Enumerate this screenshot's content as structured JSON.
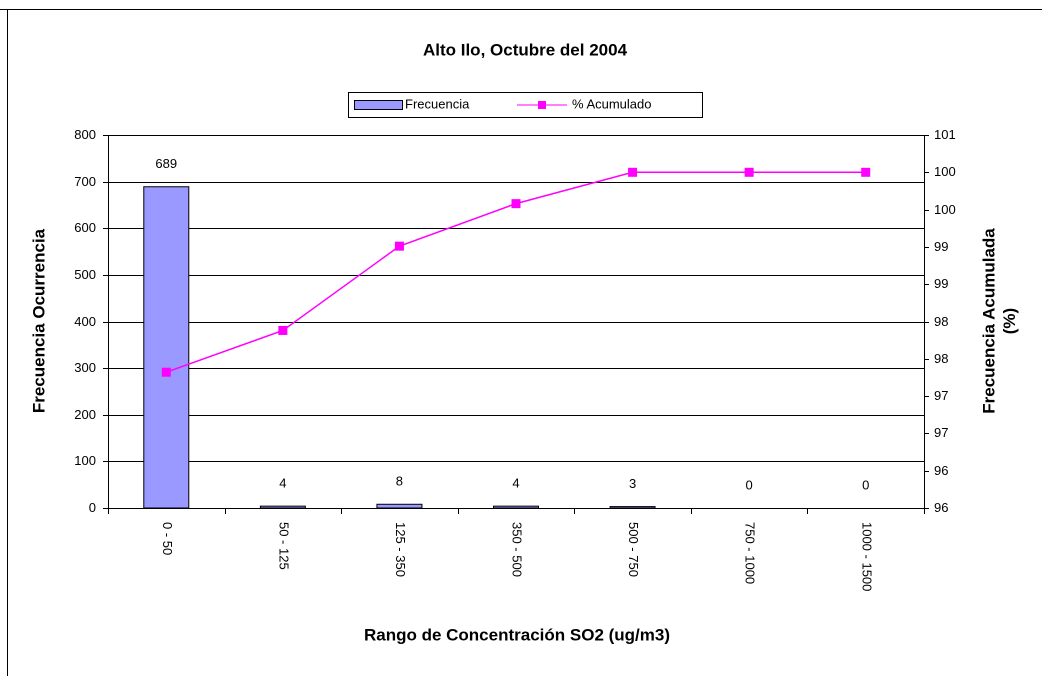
{
  "chart_data": {
    "type": "bar_line",
    "title": "Alto Ilo, Octubre del 2004",
    "x_label": "Rango de Concentración SO2 (ug/m3)",
    "y_label": "Frecuencia Ocurrencia",
    "y2_label": "Frecuencia Acumulada (%)",
    "categories": [
      "0 - 50",
      "50 - 125",
      "125 - 350",
      "350 - 500",
      "500 - 750",
      "750 - 1000",
      "1000 - 1500"
    ],
    "series": [
      {
        "name": "Frecuencia",
        "type": "bar",
        "color": "#9999ff",
        "values": [
          689,
          4,
          8,
          4,
          3,
          0,
          0
        ]
      },
      {
        "name": "% Acumulado",
        "type": "line",
        "axis": "y2",
        "color": "#ff00ff",
        "values": [
          97.32,
          97.88,
          99.01,
          99.58,
          100,
          100,
          100
        ]
      }
    ],
    "ylim": [
      0,
      800
    ],
    "yticks": [
      0,
      100,
      200,
      300,
      400,
      500,
      600,
      700,
      800
    ],
    "y2lim": [
      95.5,
      100.5
    ],
    "y2ticks": [
      {
        "value": 95.5,
        "label": "96"
      },
      {
        "value": 96,
        "label": "96"
      },
      {
        "value": 96.5,
        "label": "97"
      },
      {
        "value": 97,
        "label": "97"
      },
      {
        "value": 97.5,
        "label": "98"
      },
      {
        "value": 98,
        "label": "98"
      },
      {
        "value": 98.5,
        "label": "99"
      },
      {
        "value": 99,
        "label": "99"
      },
      {
        "value": 99.5,
        "label": "100"
      },
      {
        "value": 100,
        "label": "100"
      },
      {
        "value": 100.5,
        "label": "101"
      }
    ],
    "grid": true,
    "legend": "top"
  }
}
